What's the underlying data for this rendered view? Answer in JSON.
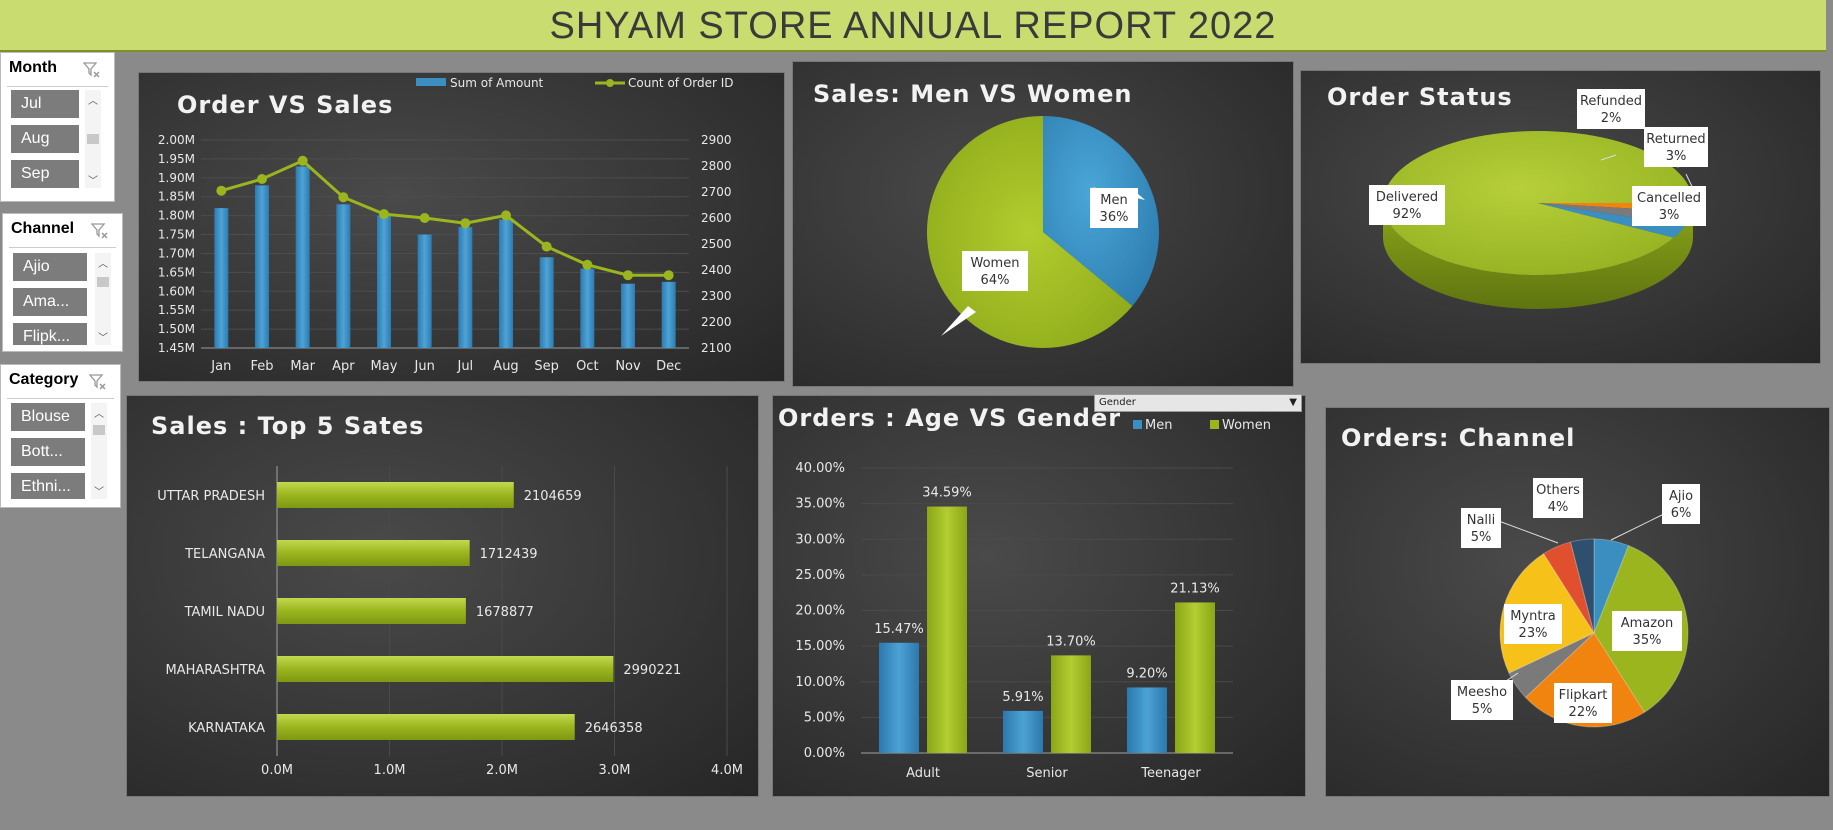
{
  "report_title": "SHYAM STORE ANNUAL REPORT 2022",
  "slicers": {
    "month": {
      "title": "Month",
      "items": [
        "Jul",
        "Aug",
        "Sep"
      ]
    },
    "channel": {
      "title": "Channel",
      "items": [
        "Ajio",
        "Ama...",
        "Flipk..."
      ]
    },
    "category": {
      "title": "Category",
      "items": [
        "Blouse",
        "Bott...",
        "Ethni..."
      ]
    }
  },
  "gender_filter": {
    "label": "Gender"
  },
  "colors": {
    "green": "#9ab51e",
    "blue": "#3a8fc0",
    "orange": "#f0840f",
    "yellow": "#f6c21a",
    "red": "#e0502f",
    "grey": "#7a7a7a",
    "darkblue": "#2f4f6f"
  },
  "chart_data": [
    {
      "id": "order_vs_sales",
      "type": "bar",
      "title": "Order VS Sales",
      "categories": [
        "Jan",
        "Feb",
        "Mar",
        "Apr",
        "May",
        "Jun",
        "Jul",
        "Aug",
        "Sep",
        "Oct",
        "Nov",
        "Dec"
      ],
      "series": [
        {
          "name": "Sum of Amount",
          "type": "bar",
          "axis": "left",
          "values": [
            1.82,
            1.88,
            1.93,
            1.83,
            1.8,
            1.75,
            1.77,
            1.79,
            1.69,
            1.66,
            1.62,
            1.625
          ]
        },
        {
          "name": "Count of Order ID",
          "type": "line",
          "axis": "right",
          "values": [
            2705,
            2750,
            2820,
            2680,
            2615,
            2600,
            2580,
            2610,
            2490,
            2420,
            2380,
            2380
          ]
        }
      ],
      "left_ticks": [
        "2.00M",
        "1.95M",
        "1.90M",
        "1.85M",
        "1.80M",
        "1.75M",
        "1.70M",
        "1.65M",
        "1.60M",
        "1.55M",
        "1.50M",
        "1.45M"
      ],
      "right_ticks": [
        "2900",
        "2800",
        "2700",
        "2600",
        "2500",
        "2400",
        "2300",
        "2200",
        "2100"
      ],
      "ylim_left": [
        1.45,
        2.0
      ],
      "ylim_right": [
        2100,
        2900
      ]
    },
    {
      "id": "sales_gender",
      "type": "pie",
      "title": "Sales: Men VS Women",
      "slices": [
        {
          "label": "Men",
          "value": 36,
          "text": "36%"
        },
        {
          "label": "Women",
          "value": 64,
          "text": "64%"
        }
      ]
    },
    {
      "id": "order_status",
      "type": "pie",
      "title": "Order Status",
      "slices": [
        {
          "label": "Delivered",
          "value": 92,
          "text": "92%"
        },
        {
          "label": "Refunded",
          "value": 2,
          "text": "2%"
        },
        {
          "label": "Returned",
          "value": 3,
          "text": "3%"
        },
        {
          "label": "Cancelled",
          "value": 3,
          "text": "3%"
        }
      ]
    },
    {
      "id": "top_states",
      "type": "bar",
      "orientation": "horizontal",
      "title": "Sales : Top 5 Sates",
      "categories": [
        "UTTAR PRADESH",
        "TELANGANA",
        "TAMIL NADU",
        "MAHARASHTRA",
        "KARNATAKA"
      ],
      "values": [
        2104659,
        1712439,
        1678877,
        2990221,
        2646358
      ],
      "x_ticks": [
        "0.0M",
        "1.0M",
        "2.0M",
        "3.0M",
        "4.0M"
      ],
      "xlim": [
        0,
        4000000
      ]
    },
    {
      "id": "age_gender",
      "type": "bar",
      "title": "Orders : Age VS Gender",
      "categories": [
        "Adult",
        "Senior",
        "Teenager"
      ],
      "series": [
        {
          "name": "Men",
          "values": [
            15.47,
            5.91,
            9.2
          ],
          "labels": [
            "15.47%",
            "5.91%",
            "9.20%"
          ]
        },
        {
          "name": "Women",
          "values": [
            34.59,
            13.7,
            21.13
          ],
          "labels": [
            "34.59%",
            "13.70%",
            "21.13%"
          ]
        }
      ],
      "y_ticks": [
        "40.00%",
        "35.00%",
        "30.00%",
        "25.00%",
        "20.00%",
        "15.00%",
        "10.00%",
        "5.00%",
        "0.00%"
      ],
      "ylim": [
        0,
        40
      ]
    },
    {
      "id": "channel",
      "type": "pie",
      "title": "Orders: Channel",
      "slices": [
        {
          "label": "Ajio",
          "value": 6,
          "text": "6%"
        },
        {
          "label": "Amazon",
          "value": 35,
          "text": "35%"
        },
        {
          "label": "Flipkart",
          "value": 22,
          "text": "22%"
        },
        {
          "label": "Meesho",
          "value": 5,
          "text": "5%"
        },
        {
          "label": "Myntra",
          "value": 23,
          "text": "23%"
        },
        {
          "label": "Nalli",
          "value": 5,
          "text": "5%"
        },
        {
          "label": "Others",
          "value": 4,
          "text": "4%"
        }
      ]
    }
  ]
}
